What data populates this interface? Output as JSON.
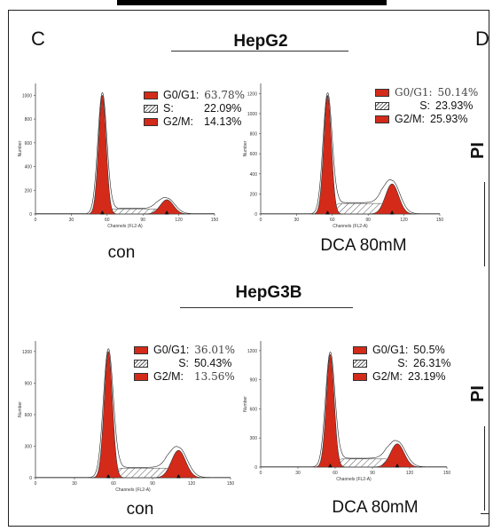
{
  "letters": {
    "left": "C",
    "right": "D"
  },
  "side_label": "PI",
  "groups": [
    {
      "title": "HepG2",
      "panels": [
        {
          "caption": "con",
          "legend": [
            {
              "label": "G0/G1:",
              "value": "63.78%",
              "swatch": "red",
              "serif": true
            },
            {
              "label": "S:",
              "value": "22.09%",
              "swatch": "hatch",
              "serif": false
            },
            {
              "label": "G2/M:",
              "value": "14.13%",
              "swatch": "red",
              "serif": false
            }
          ],
          "ylabel": "Number",
          "xlabel": "Channels (FL2-A)",
          "yticks": [
            "0",
            "200",
            "400",
            "600",
            "800",
            "1000"
          ],
          "xticks": [
            "0",
            "30",
            "60",
            "90",
            "120",
            "150"
          ]
        },
        {
          "caption": "DCA 80mM",
          "legend": [
            {
              "label": "G0/G1:",
              "value": "50.14%",
              "swatch": "red",
              "serif": true
            },
            {
              "label": "S:",
              "value": "23.93%",
              "swatch": "hatch",
              "serif": false
            },
            {
              "label": "G2/M:",
              "value": "25.93%",
              "swatch": "red",
              "serif": false
            }
          ],
          "ylabel": "Number",
          "xlabel": "Channels (FL2-A)",
          "yticks": [
            "0",
            "200",
            "400",
            "600",
            "800",
            "1000",
            "1200"
          ],
          "xticks": [
            "0",
            "30",
            "60",
            "90",
            "120",
            "150"
          ]
        }
      ]
    },
    {
      "title": "HepG3B",
      "panels": [
        {
          "caption": "con",
          "legend": [
            {
              "label": "G0/G1:",
              "value": "36.01%",
              "swatch": "red",
              "serif": true
            },
            {
              "label": "S:",
              "value": "50.43%",
              "swatch": "hatch",
              "serif": false
            },
            {
              "label": "G2/M:",
              "value": "13.56%",
              "swatch": "red",
              "serif": true
            }
          ],
          "ylabel": "Number",
          "xlabel": "Channels (FL2-A)",
          "yticks": [
            "0",
            "300",
            "600",
            "900",
            "1200"
          ],
          "xticks": [
            "0",
            "30",
            "60",
            "90",
            "120",
            "150"
          ]
        },
        {
          "caption": "DCA 80mM",
          "legend": [
            {
              "label": "G0/G1:",
              "value": "50.5%",
              "swatch": "red",
              "serif": false
            },
            {
              "label": "S:",
              "value": "26.31%",
              "swatch": "hatch",
              "serif": false
            },
            {
              "label": "G2/M:",
              "value": "23.19%",
              "swatch": "red",
              "serif": false
            }
          ],
          "ylabel": "Number",
          "xlabel": "Channels (FL2-A)",
          "yticks": [
            "0",
            "300",
            "600",
            "900",
            "1200"
          ],
          "xticks": [
            "0",
            "30",
            "60",
            "90",
            "120",
            "150"
          ]
        }
      ]
    }
  ],
  "colors": {
    "peak": "#d42a1a",
    "outline": "#333333",
    "hatch": "#555555"
  },
  "chart_data": [
    {
      "type": "area",
      "group": "HepG2",
      "panel": "con",
      "xlabel": "Channels (FL2-A)",
      "ylabel": "Number",
      "xlim": [
        0,
        150
      ],
      "ylim": [
        0,
        1100
      ],
      "g1_peak": {
        "x": 56,
        "height": 1000
      },
      "g2_peak": {
        "x": 110,
        "height": 120
      },
      "series": [
        {
          "name": "G0/G1",
          "values": [
            63.78
          ]
        },
        {
          "name": "S",
          "values": [
            22.09
          ]
        },
        {
          "name": "G2/M",
          "values": [
            14.13
          ]
        }
      ]
    },
    {
      "type": "area",
      "group": "HepG2",
      "panel": "DCA 80mM",
      "xlabel": "Channels (FL2-A)",
      "ylabel": "Number",
      "xlim": [
        0,
        150
      ],
      "ylim": [
        0,
        1300
      ],
      "g1_peak": {
        "x": 56,
        "height": 1180
      },
      "g2_peak": {
        "x": 110,
        "height": 300
      },
      "series": [
        {
          "name": "G0/G1",
          "values": [
            50.14
          ]
        },
        {
          "name": "S",
          "values": [
            23.93
          ]
        },
        {
          "name": "G2/M",
          "values": [
            25.93
          ]
        }
      ]
    },
    {
      "type": "area",
      "group": "HepG3B",
      "panel": "con",
      "xlabel": "Channels (FL2-A)",
      "ylabel": "Number",
      "xlim": [
        0,
        150
      ],
      "ylim": [
        0,
        1300
      ],
      "g1_peak": {
        "x": 56,
        "height": 1200
      },
      "g2_peak": {
        "x": 110,
        "height": 260
      },
      "series": [
        {
          "name": "G0/G1",
          "values": [
            36.01
          ]
        },
        {
          "name": "S",
          "values": [
            50.43
          ]
        },
        {
          "name": "G2/M",
          "values": [
            13.56
          ]
        }
      ]
    },
    {
      "type": "area",
      "group": "HepG3B",
      "panel": "DCA 80mM",
      "xlabel": "Channels (FL2-A)",
      "ylabel": "Number",
      "xlim": [
        0,
        150
      ],
      "ylim": [
        0,
        1300
      ],
      "g1_peak": {
        "x": 56,
        "height": 1160
      },
      "g2_peak": {
        "x": 110,
        "height": 240
      },
      "series": [
        {
          "name": "G0/G1",
          "values": [
            50.5
          ]
        },
        {
          "name": "S",
          "values": [
            26.31
          ]
        },
        {
          "name": "G2/M",
          "values": [
            23.19
          ]
        }
      ]
    }
  ]
}
